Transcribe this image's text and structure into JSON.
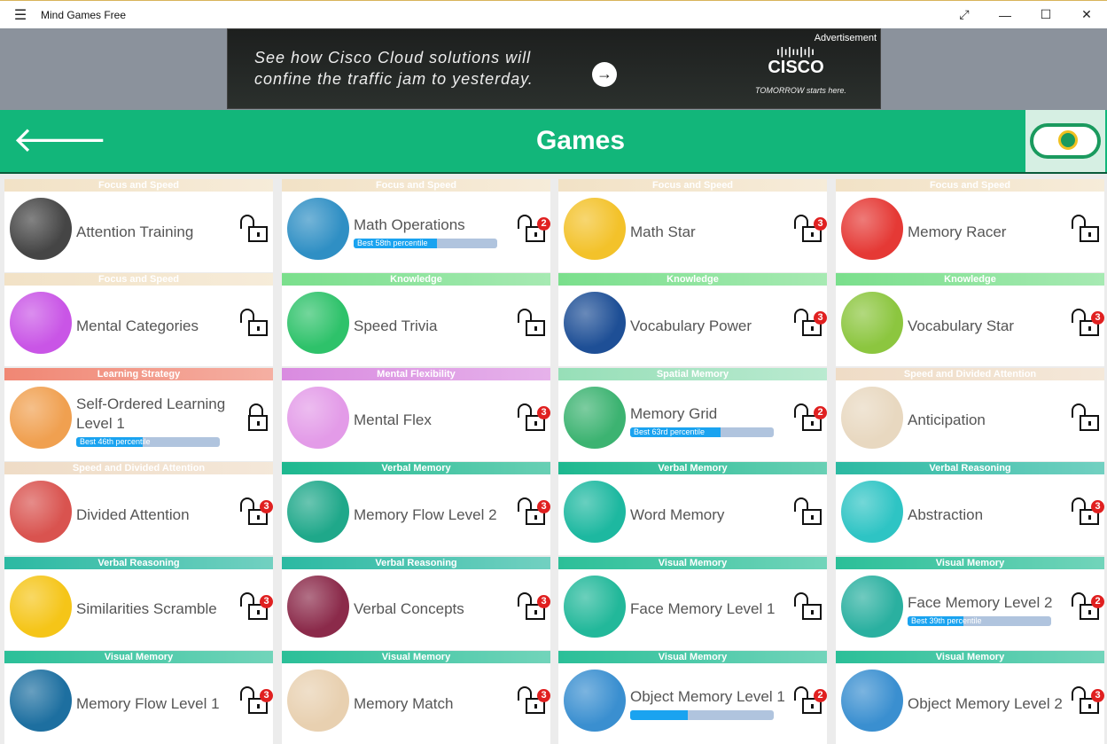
{
  "window": {
    "title": "Mind Games Free",
    "menu_icon": "hamburger-icon",
    "controls": [
      "⤢",
      "—",
      "☐",
      "✕"
    ]
  },
  "ad": {
    "line1": "See how Cisco Cloud solutions will",
    "line2": "confine the traffic jam to yesterday.",
    "label": "Advertisement",
    "brand": "CISCO",
    "tagline": "TOMORROW starts here."
  },
  "header": {
    "title": "Games",
    "back_icon": "arrow-left-icon",
    "logo_icon": "game-controller-icon"
  },
  "category_colors": {
    "Focus and Speed": "#f2e2c6",
    "Knowledge": "#7adf8c",
    "Learning Strategy": "#f08774",
    "Mental Flexibility": "#d98be0",
    "Spatial Memory": "#97dfb8",
    "Speed and Divided Attention": "#efdcc6",
    "Verbal Memory": "#1db88f",
    "Verbal Reasoning": "#2bb9a2",
    "Visual Memory": "#2bbf98"
  },
  "games": [
    {
      "category": "Focus and Speed",
      "name": "Attention Training",
      "icon_color": "#454545",
      "badge": null,
      "locked": false
    },
    {
      "category": "Focus and Speed",
      "name": "Math Operations",
      "icon_color": "#2f8fc4",
      "badge": "2",
      "best": "Best 58th percentile",
      "percentile": 58
    },
    {
      "category": "Focus and Speed",
      "name": "Math Star",
      "icon_color": "#f3c22a",
      "badge": "3"
    },
    {
      "category": "Focus and Speed",
      "name": "Memory Racer",
      "icon_color": "#e53935",
      "badge": null
    },
    {
      "category": "Focus and Speed",
      "name": "Mental Categories",
      "icon_color": "#c955e6",
      "badge": null
    },
    {
      "category": "Knowledge",
      "name": "Speed Trivia",
      "icon_color": "#2ec26a",
      "badge": null
    },
    {
      "category": "Knowledge",
      "name": "Vocabulary Power",
      "icon_color": "#1e4f96",
      "badge": "3"
    },
    {
      "category": "Knowledge",
      "name": "Vocabulary Star",
      "icon_color": "#8cc63f",
      "badge": "3"
    },
    {
      "category": "Learning Strategy",
      "name": "Self-Ordered Learning Level 1",
      "icon_color": "#f0a050",
      "badge": null,
      "locked": true,
      "best": "Best 46th percentile",
      "percentile": 46
    },
    {
      "category": "Mental Flexibility",
      "name": "Mental Flex",
      "icon_color": "#e39be8",
      "badge": "3"
    },
    {
      "category": "Spatial Memory",
      "name": "Memory Grid",
      "icon_color": "#3cb371",
      "badge": "2",
      "best": "Best 63rd percentile",
      "percentile": 63
    },
    {
      "category": "Speed and Divided Attention",
      "name": "Anticipation",
      "icon_color": "#e8d8c0",
      "badge": null
    },
    {
      "category": "Speed and Divided Attention",
      "name": "Divided Attention",
      "icon_color": "#d9534f",
      "badge": "3"
    },
    {
      "category": "Verbal Memory",
      "name": "Memory Flow Level 2",
      "icon_color": "#1fa88a",
      "badge": "3"
    },
    {
      "category": "Verbal Memory",
      "name": "Word Memory",
      "icon_color": "#1db8a0",
      "badge": null
    },
    {
      "category": "Verbal Reasoning",
      "name": "Abstraction",
      "icon_color": "#2ec4c4",
      "badge": "3"
    },
    {
      "category": "Verbal Reasoning",
      "name": "Similarities Scramble",
      "icon_color": "#f5c518",
      "badge": "3"
    },
    {
      "category": "Verbal Reasoning",
      "name": "Verbal Concepts",
      "icon_color": "#8b2a4a",
      "badge": "3"
    },
    {
      "category": "Visual Memory",
      "name": "Face Memory Level 1",
      "icon_color": "#22b89a",
      "badge": null
    },
    {
      "category": "Visual Memory",
      "name": "Face Memory Level 2",
      "icon_color": "#2ab0a0",
      "badge": "2",
      "best": "Best 39th percentile",
      "percentile": 39
    },
    {
      "category": "Visual Memory",
      "name": "Memory Flow Level 1",
      "icon_color": "#1d6fa0",
      "badge": "3"
    },
    {
      "category": "Visual Memory",
      "name": "Memory Match",
      "icon_color": "#e8d0b0",
      "badge": "3"
    },
    {
      "category": "Visual Memory",
      "name": "Object Memory Level 1",
      "icon_color": "#3a8fd0",
      "badge": "2",
      "best": "",
      "percentile": 40
    },
    {
      "category": "Visual Memory",
      "name": "Object Memory Level 2",
      "icon_color": "#3a8fd0",
      "badge": "3"
    }
  ]
}
